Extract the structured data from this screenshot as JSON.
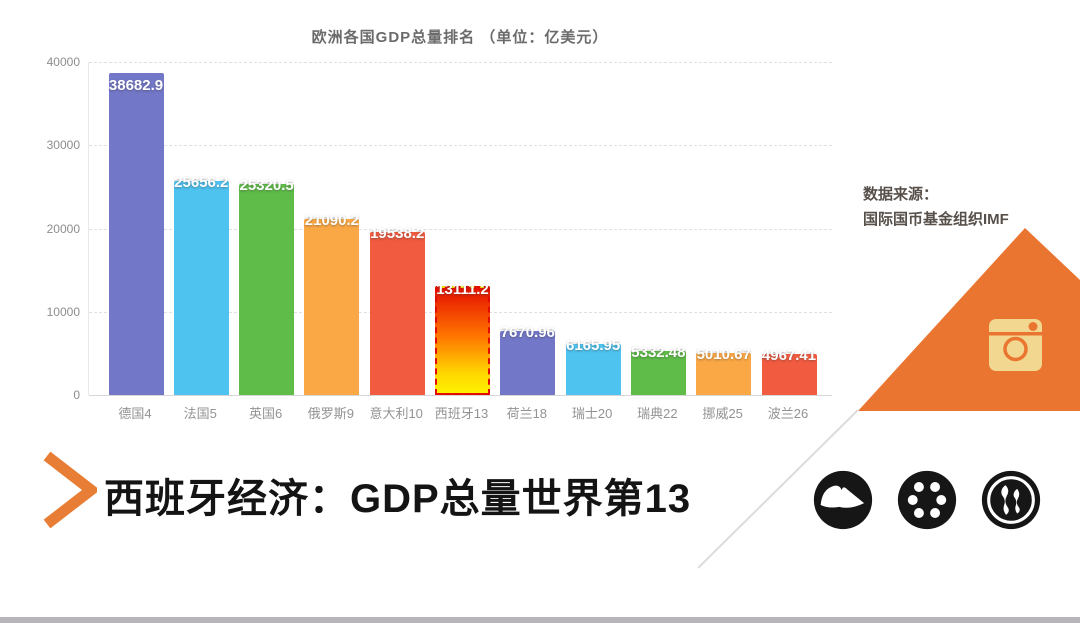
{
  "chart_data": {
    "type": "bar",
    "title": "欧洲各国GDP总量排名 （单位：亿美元）",
    "categories": [
      "德国4",
      "法国5",
      "英国6",
      "俄罗斯9",
      "意大利10",
      "西班牙13",
      "荷兰18",
      "瑞士20",
      "瑞典22",
      "挪威25",
      "波兰26"
    ],
    "values": [
      38682.9,
      25656.2,
      25320.5,
      21090.2,
      19538.2,
      13111.2,
      7670.96,
      6165.95,
      5332.48,
      5010.67,
      4967.41
    ],
    "value_labels": [
      "38682.9",
      "25656.2",
      "25320.5",
      "21090.2",
      "19538.2",
      "13111.2",
      "7670.96",
      "6165.95",
      "5332.48",
      "5010.67",
      "4967.41"
    ],
    "bar_colors": [
      "#7277c8",
      "#4ec3f0",
      "#5fbc49",
      "#faa845",
      "#f15b40",
      "highlight",
      "#7277c8",
      "#4ec3f0",
      "#5fbc49",
      "#faa845",
      "#f15b40"
    ],
    "highlight_index": 5,
    "highlight_gradient": [
      "#e41000",
      "#ff7300",
      "#ffd400",
      "#fff200"
    ],
    "highlight_border_color": "#e30b00",
    "xlabel": "",
    "ylabel": "",
    "ylim": [
      0,
      40000
    ],
    "y_ticks": [
      40000,
      30000,
      20000,
      10000,
      0
    ],
    "y_tick_labels": [
      "40000",
      "30000",
      "20000",
      "10000",
      "0"
    ],
    "grid": "horizontal dashed, on",
    "legend": "none"
  },
  "source_note": {
    "line1": "数据来源：",
    "line2": "国际国币基金组织IMF"
  },
  "footer": {
    "headline": "西班牙经济：GDP总量世界第13"
  },
  "icons": {
    "chevron": "chevron-right-icon",
    "camera": "camera-icon",
    "social": [
      "grooveshark-wave-icon",
      "dots-circle-icon",
      "flame-circle-icon"
    ]
  },
  "colors": {
    "accent_orange": "#ea7531",
    "chevron_orange": "#e87e35",
    "camera_cream": "#f1d78f",
    "icon_black": "#161616",
    "bottom_bar_gray": "#b7b4ba",
    "title_gray": "#6b6b6b",
    "axis_gray": "#8d8d8d"
  }
}
